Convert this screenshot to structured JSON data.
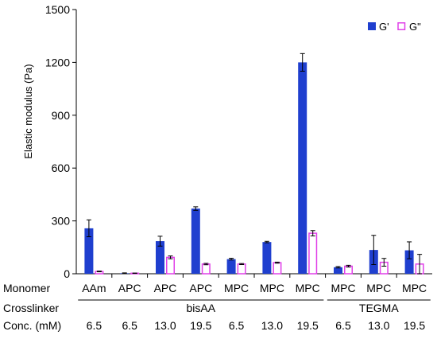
{
  "chart_data": {
    "type": "bar",
    "title": "",
    "ylabel": "Elastic modulus (Pa)",
    "ylim": [
      0,
      1500
    ],
    "yticks": [
      0,
      300,
      600,
      900,
      1200,
      1500
    ],
    "grid": false,
    "legend_position": "top-right",
    "categories": [
      "AAm",
      "APC",
      "APC",
      "APC",
      "MPC",
      "MPC",
      "MPC",
      "MPC",
      "MPC",
      "MPC"
    ],
    "row_labels": {
      "monomer": "Monomer",
      "crosslinker": "Crosslinker",
      "conc": "Conc. (mM)"
    },
    "crosslinker_groups": [
      {
        "label": "bisAA",
        "span": [
          0,
          6
        ]
      },
      {
        "label": "TEGMA",
        "span": [
          7,
          9
        ]
      }
    ],
    "concentrations": [
      "6.5",
      "6.5",
      "13.0",
      "19.5",
      "6.5",
      "13.0",
      "19.5",
      "6.5",
      "13.0",
      "19.5"
    ],
    "series": [
      {
        "name": "G'",
        "fill": "#1f3fcf",
        "style": "filled",
        "values": [
          258,
          3,
          185,
          370,
          83,
          180,
          1200,
          37,
          135,
          133
        ],
        "errors": [
          48,
          2,
          28,
          10,
          5,
          4,
          50,
          4,
          83,
          48
        ]
      },
      {
        "name": "G\"",
        "fill": "#e040e8",
        "style": "outline",
        "values": [
          13,
          3,
          93,
          55,
          55,
          63,
          230,
          43,
          65,
          55
        ],
        "errors": [
          2,
          1,
          8,
          4,
          3,
          3,
          15,
          5,
          22,
          55
        ]
      }
    ]
  }
}
